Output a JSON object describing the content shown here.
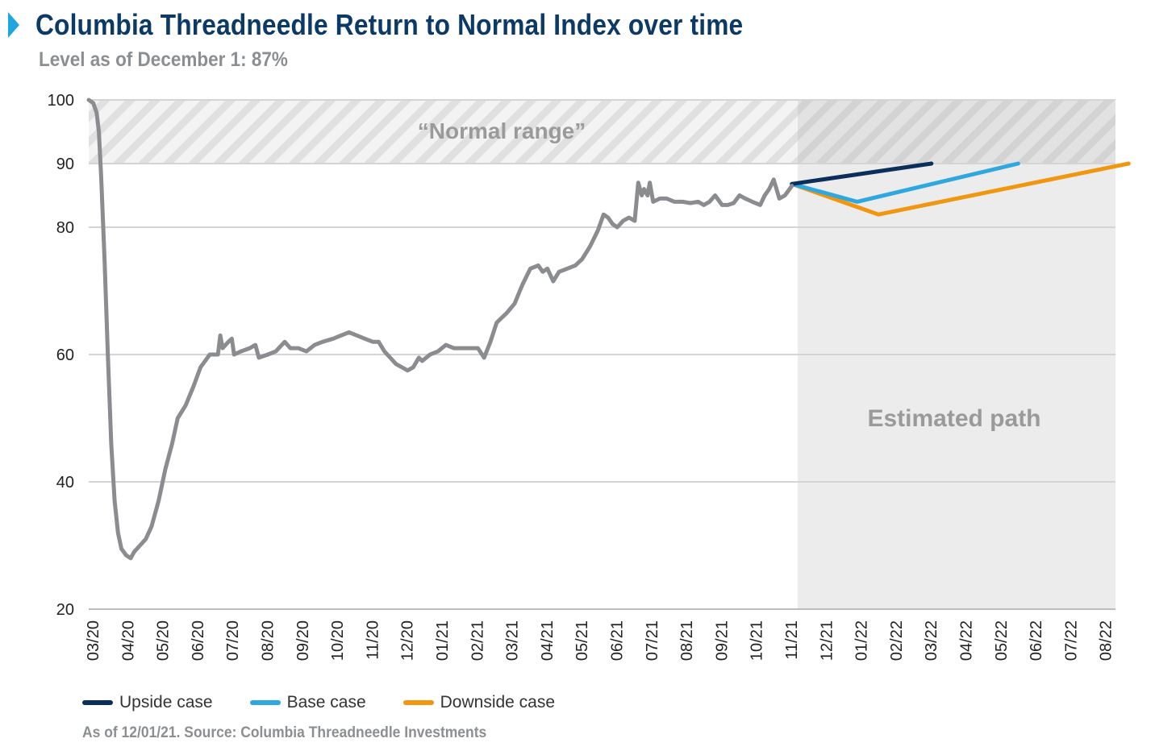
{
  "header": {
    "title": "Columbia Threadneedle Return to Normal Index over time",
    "subtitle": "Level as of December 1: 87%"
  },
  "footer": {
    "source": "As of 12/01/21. Source: Columbia Threadneedle Investments"
  },
  "chart_data": {
    "type": "line",
    "title": "Columbia Threadneedle Return to Normal Index over time",
    "xlabel": "",
    "ylabel": "",
    "ylim": [
      20,
      100
    ],
    "yticks": [
      20,
      40,
      60,
      80,
      90,
      100
    ],
    "x_tick_labels": [
      "03/20",
      "04/20",
      "05/20",
      "06/20",
      "07/20",
      "08/20",
      "09/20",
      "10/20",
      "11/20",
      "12/20",
      "01/21",
      "02/21",
      "03/21",
      "04/21",
      "05/21",
      "06/21",
      "07/21",
      "08/21",
      "09/21",
      "10/21",
      "11/21",
      "12/21",
      "01/22",
      "02/22",
      "03/22",
      "04/22",
      "05/22",
      "06/22",
      "07/22",
      "08/22"
    ],
    "grid": true,
    "legend_position": "bottom",
    "annotations": {
      "normal_range_label": "“Normal range”",
      "normal_range": [
        90,
        100
      ],
      "estimated_label": "Estimated path"
    },
    "index_series": {
      "color": "#8a8c8f",
      "points": [
        [
          "2020-03-01",
          100
        ],
        [
          "2020-03-05",
          99.5
        ],
        [
          "2020-03-08",
          98
        ],
        [
          "2020-03-10",
          95
        ],
        [
          "2020-03-12",
          88
        ],
        [
          "2020-03-15",
          75
        ],
        [
          "2020-03-18",
          60
        ],
        [
          "2020-03-21",
          46
        ],
        [
          "2020-03-24",
          37
        ],
        [
          "2020-03-27",
          32
        ],
        [
          "2020-03-30",
          29.5
        ],
        [
          "2020-04-03",
          28.5
        ],
        [
          "2020-04-07",
          28
        ],
        [
          "2020-04-10",
          29
        ],
        [
          "2020-04-15",
          30
        ],
        [
          "2020-04-20",
          31
        ],
        [
          "2020-04-25",
          33
        ],
        [
          "2020-05-01",
          37
        ],
        [
          "2020-05-07",
          42
        ],
        [
          "2020-05-13",
          46
        ],
        [
          "2020-05-18",
          50
        ],
        [
          "2020-05-25",
          52
        ],
        [
          "2020-06-01",
          55
        ],
        [
          "2020-06-07",
          58
        ],
        [
          "2020-06-15",
          60
        ],
        [
          "2020-06-22",
          60
        ],
        [
          "2020-06-24",
          63
        ],
        [
          "2020-06-26",
          61
        ],
        [
          "2020-07-01",
          62
        ],
        [
          "2020-07-04",
          62.5
        ],
        [
          "2020-07-06",
          60
        ],
        [
          "2020-07-12",
          60.5
        ],
        [
          "2020-07-20",
          61
        ],
        [
          "2020-07-25",
          61.5
        ],
        [
          "2020-07-28",
          59.5
        ],
        [
          "2020-08-05",
          60
        ],
        [
          "2020-08-12",
          60.5
        ],
        [
          "2020-08-20",
          62
        ],
        [
          "2020-08-25",
          61
        ],
        [
          "2020-09-01",
          61
        ],
        [
          "2020-09-08",
          60.5
        ],
        [
          "2020-09-15",
          61.5
        ],
        [
          "2020-09-22",
          62
        ],
        [
          "2020-10-01",
          62.5
        ],
        [
          "2020-10-08",
          63
        ],
        [
          "2020-10-15",
          63.5
        ],
        [
          "2020-10-22",
          63
        ],
        [
          "2020-10-29",
          62.5
        ],
        [
          "2020-11-05",
          62
        ],
        [
          "2020-11-10",
          62
        ],
        [
          "2020-11-15",
          60.5
        ],
        [
          "2020-11-20",
          59.5
        ],
        [
          "2020-11-25",
          58.5
        ],
        [
          "2020-11-30",
          58
        ],
        [
          "2020-12-05",
          57.5
        ],
        [
          "2020-12-10",
          58
        ],
        [
          "2020-12-15",
          59.5
        ],
        [
          "2020-12-18",
          59
        ],
        [
          "2020-12-25",
          60
        ],
        [
          "2021-01-01",
          60.5
        ],
        [
          "2021-01-08",
          61.5
        ],
        [
          "2021-01-15",
          61
        ],
        [
          "2021-01-22",
          61
        ],
        [
          "2021-01-29",
          61
        ],
        [
          "2021-02-05",
          61
        ],
        [
          "2021-02-10",
          59.5
        ],
        [
          "2021-02-15",
          62
        ],
        [
          "2021-02-20",
          65
        ],
        [
          "2021-02-28",
          66.5
        ],
        [
          "2021-03-07",
          68
        ],
        [
          "2021-03-14",
          71
        ],
        [
          "2021-03-21",
          73.5
        ],
        [
          "2021-03-28",
          74
        ],
        [
          "2021-04-01",
          73
        ],
        [
          "2021-04-05",
          73.5
        ],
        [
          "2021-04-10",
          71.5
        ],
        [
          "2021-04-15",
          73
        ],
        [
          "2021-04-22",
          73.5
        ],
        [
          "2021-04-29",
          74
        ],
        [
          "2021-05-05",
          75
        ],
        [
          "2021-05-12",
          77
        ],
        [
          "2021-05-19",
          79.5
        ],
        [
          "2021-05-24",
          82
        ],
        [
          "2021-05-28",
          81.5
        ],
        [
          "2021-06-01",
          80.5
        ],
        [
          "2021-06-05",
          80
        ],
        [
          "2021-06-10",
          81
        ],
        [
          "2021-06-15",
          81.5
        ],
        [
          "2021-06-20",
          81
        ],
        [
          "2021-06-23",
          87
        ],
        [
          "2021-06-26",
          85
        ],
        [
          "2021-06-28",
          86
        ],
        [
          "2021-07-01",
          85
        ],
        [
          "2021-07-03",
          87
        ],
        [
          "2021-07-06",
          84
        ],
        [
          "2021-07-12",
          84.5
        ],
        [
          "2021-07-18",
          84.5
        ],
        [
          "2021-07-25",
          84
        ],
        [
          "2021-08-01",
          84
        ],
        [
          "2021-08-08",
          83.8
        ],
        [
          "2021-08-15",
          84
        ],
        [
          "2021-08-20",
          83.5
        ],
        [
          "2021-08-25",
          84
        ],
        [
          "2021-08-30",
          85
        ],
        [
          "2021-09-05",
          83.5
        ],
        [
          "2021-09-10",
          83.5
        ],
        [
          "2021-09-15",
          83.8
        ],
        [
          "2021-09-20",
          85
        ],
        [
          "2021-09-25",
          84.5
        ],
        [
          "2021-10-01",
          84
        ],
        [
          "2021-10-08",
          83.5
        ],
        [
          "2021-10-12",
          85
        ],
        [
          "2021-10-16",
          86
        ],
        [
          "2021-10-20",
          87.5
        ],
        [
          "2021-10-25",
          84.5
        ],
        [
          "2021-10-30",
          85
        ],
        [
          "2021-11-05",
          86.5
        ]
      ]
    },
    "series": [
      {
        "name": "Upside case",
        "color": "#0c2e5a",
        "points": [
          [
            "2021-11-05",
            86.8
          ],
          [
            "2022-03-05",
            90
          ]
        ]
      },
      {
        "name": "Base case",
        "color": "#2ea8df",
        "points": [
          [
            "2021-11-05",
            86.8
          ],
          [
            "2022-01-01",
            84
          ],
          [
            "2022-05-20",
            90
          ]
        ]
      },
      {
        "name": "Downside case",
        "color": "#f0960f",
        "points": [
          [
            "2021-11-05",
            86.8
          ],
          [
            "2022-01-20",
            82
          ],
          [
            "2022-08-25",
            90
          ]
        ]
      }
    ]
  }
}
